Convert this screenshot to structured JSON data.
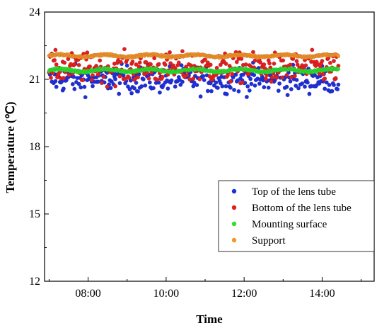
{
  "chart_data": {
    "type": "scatter",
    "title": "",
    "xlabel": "Time",
    "ylabel": "Temperature (℃)",
    "xlim": [
      "06:53",
      "15:20"
    ],
    "ylim": [
      12,
      24
    ],
    "xticks": [
      "08:00",
      "10:00",
      "12:00",
      "14:00"
    ],
    "yticks": [
      12,
      15,
      18,
      21,
      24
    ],
    "grid": false,
    "legend_position": "bottom-right",
    "x_range": [
      "07:00",
      "14:25"
    ],
    "series": [
      {
        "name": "Top of the lens tube",
        "color": "#1f2fd6",
        "mean": 21.0,
        "spread": 0.55,
        "count": 320
      },
      {
        "name": "Bottom of the lens tube",
        "color": "#e01f1f",
        "mean": 21.5,
        "spread": 0.6,
        "count": 320
      },
      {
        "name": "Mounting surface",
        "color": "#2fe02f",
        "mean": 21.4,
        "spread": 0.06,
        "count": 450
      },
      {
        "name": "Support",
        "color": "#f5952a",
        "mean": 22.05,
        "spread": 0.05,
        "count": 450
      }
    ]
  }
}
